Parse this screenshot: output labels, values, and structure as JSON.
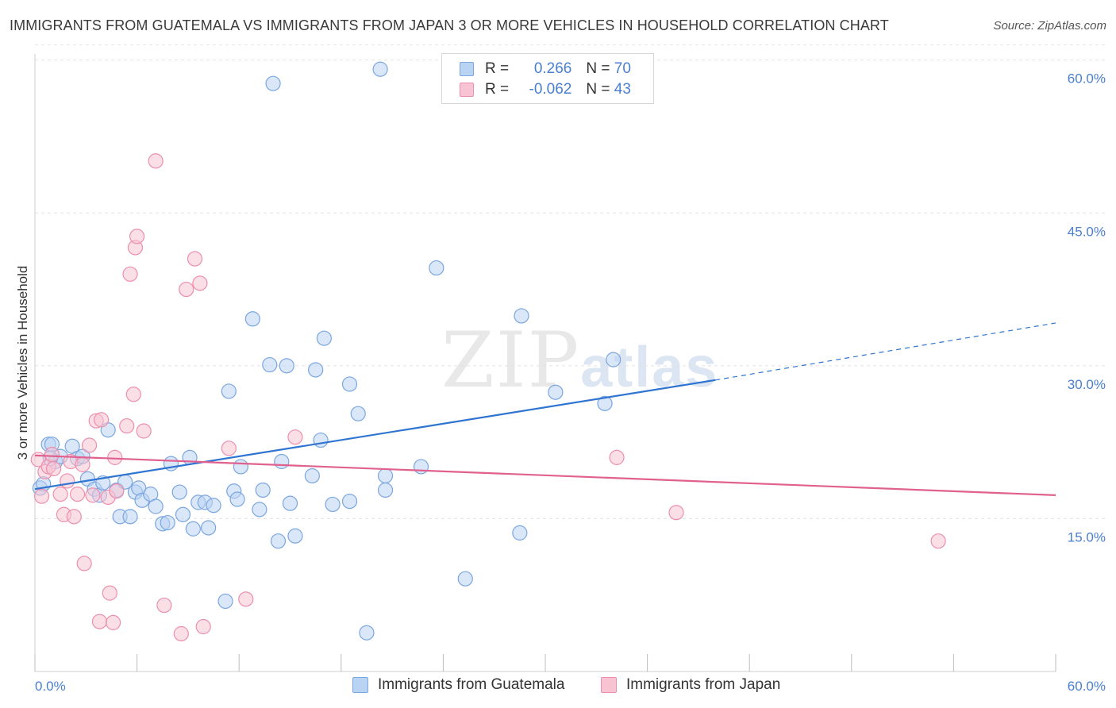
{
  "header": {
    "title": "IMMIGRANTS FROM GUATEMALA VS IMMIGRANTS FROM JAPAN 3 OR MORE VEHICLES IN HOUSEHOLD CORRELATION CHART",
    "source": "Source: ZipAtlas.com"
  },
  "legend": {
    "rows": [
      {
        "r_label": "R = ",
        "r_value": "0.266",
        "n_label": "N = ",
        "n_value": "70"
      },
      {
        "r_label": "R = ",
        "r_value": "-0.062",
        "n_label": "N = ",
        "n_value": "43"
      }
    ]
  },
  "watermark": {
    "zip": "ZIP",
    "atlas": "atlas"
  },
  "colors": {
    "guatemala_fill": "#b9d3f3",
    "guatemala_stroke": "#7ba6e0",
    "guatemala_line": "#2f74d0",
    "japan_fill": "#f8c4d4",
    "japan_stroke": "#ec8fae",
    "japan_line": "#e0608e",
    "tick_text": "#4a7fd0",
    "grid": "#e2e2e2"
  },
  "chart_data": {
    "type": "scatter",
    "title": "IMMIGRANTS FROM GUATEMALA VS IMMIGRANTS FROM JAPAN 3 OR MORE VEHICLES IN HOUSEHOLD CORRELATION CHART",
    "xlabel": "",
    "ylabel": "3 or more Vehicles in Household",
    "xlim": [
      0,
      60
    ],
    "ylim": [
      0,
      62
    ],
    "x_tick_labels": [
      "0.0%",
      "60.0%"
    ],
    "y_ticks": [
      15,
      30,
      45,
      60
    ],
    "y_tick_labels": [
      "15.0%",
      "30.0%",
      "45.0%",
      "60.0%"
    ],
    "grid": true,
    "legend_position": "top-center",
    "series": [
      {
        "name": "Immigrants from Guatemala",
        "r": 0.266,
        "n": 70,
        "trend": {
          "x0": 0,
          "y0": 17.9,
          "x1": 40,
          "y1": 28.6,
          "dash_to_x": 60,
          "dash_to_y": 34.2
        },
        "points": [
          [
            0.3,
            18.0
          ],
          [
            0.5,
            18.4
          ],
          [
            0.8,
            22.3
          ],
          [
            1.0,
            22.3
          ],
          [
            1.2,
            20.6
          ],
          [
            1.5,
            21.1
          ],
          [
            2.2,
            22.1
          ],
          [
            2.5,
            20.9
          ],
          [
            2.8,
            21.1
          ],
          [
            3.1,
            18.9
          ],
          [
            3.5,
            17.9
          ],
          [
            3.8,
            17.3
          ],
          [
            4.0,
            18.5
          ],
          [
            4.3,
            23.7
          ],
          [
            4.8,
            17.8
          ],
          [
            5.0,
            15.2
          ],
          [
            5.3,
            18.6
          ],
          [
            5.6,
            15.2
          ],
          [
            5.9,
            17.6
          ],
          [
            6.1,
            18.0
          ],
          [
            6.3,
            16.8
          ],
          [
            6.8,
            17.4
          ],
          [
            7.1,
            16.2
          ],
          [
            7.5,
            14.5
          ],
          [
            7.8,
            14.6
          ],
          [
            8.0,
            20.4
          ],
          [
            8.5,
            17.6
          ],
          [
            8.7,
            15.4
          ],
          [
            9.1,
            21.0
          ],
          [
            9.3,
            14.0
          ],
          [
            9.6,
            16.6
          ],
          [
            10.0,
            16.6
          ],
          [
            10.2,
            14.1
          ],
          [
            10.5,
            16.3
          ],
          [
            11.2,
            6.9
          ],
          [
            11.4,
            27.5
          ],
          [
            11.7,
            17.7
          ],
          [
            11.9,
            16.9
          ],
          [
            12.1,
            20.1
          ],
          [
            12.8,
            34.6
          ],
          [
            13.2,
            15.9
          ],
          [
            13.4,
            17.8
          ],
          [
            13.8,
            30.1
          ],
          [
            14.0,
            57.7
          ],
          [
            14.3,
            12.8
          ],
          [
            14.5,
            20.6
          ],
          [
            14.8,
            30.0
          ],
          [
            15.0,
            16.5
          ],
          [
            15.3,
            13.3
          ],
          [
            16.3,
            19.2
          ],
          [
            16.5,
            29.6
          ],
          [
            16.8,
            22.7
          ],
          [
            17.0,
            32.7
          ],
          [
            17.5,
            16.4
          ],
          [
            18.5,
            16.7
          ],
          [
            18.5,
            28.2
          ],
          [
            19.0,
            25.3
          ],
          [
            19.5,
            3.8
          ],
          [
            20.3,
            59.1
          ],
          [
            20.6,
            19.2
          ],
          [
            20.6,
            17.8
          ],
          [
            22.7,
            20.1
          ],
          [
            23.6,
            39.6
          ],
          [
            25.3,
            9.1
          ],
          [
            28.5,
            13.6
          ],
          [
            28.6,
            34.9
          ],
          [
            30.6,
            27.4
          ],
          [
            33.5,
            26.3
          ],
          [
            34.0,
            30.6
          ],
          [
            0.9,
            20.9
          ]
        ]
      },
      {
        "name": "Immigrants from Japan",
        "r": -0.062,
        "n": 43,
        "trend": {
          "x0": 0,
          "y0": 21.2,
          "x1": 60,
          "y1": 17.3
        },
        "points": [
          [
            0.2,
            20.8
          ],
          [
            0.4,
            17.2
          ],
          [
            0.6,
            19.6
          ],
          [
            0.8,
            20.1
          ],
          [
            1.1,
            19.9
          ],
          [
            1.5,
            17.4
          ],
          [
            1.7,
            15.4
          ],
          [
            1.9,
            18.7
          ],
          [
            2.1,
            20.6
          ],
          [
            2.3,
            15.2
          ],
          [
            2.5,
            17.4
          ],
          [
            2.8,
            20.3
          ],
          [
            2.9,
            10.6
          ],
          [
            3.2,
            22.2
          ],
          [
            3.4,
            17.3
          ],
          [
            3.6,
            24.6
          ],
          [
            3.8,
            4.9
          ],
          [
            3.9,
            24.7
          ],
          [
            4.3,
            17.1
          ],
          [
            4.4,
            7.7
          ],
          [
            4.6,
            4.8
          ],
          [
            4.8,
            17.7
          ],
          [
            4.7,
            21.0
          ],
          [
            5.4,
            24.1
          ],
          [
            5.6,
            39.0
          ],
          [
            5.8,
            27.2
          ],
          [
            5.9,
            41.6
          ],
          [
            6.0,
            42.7
          ],
          [
            6.4,
            23.6
          ],
          [
            7.1,
            50.1
          ],
          [
            7.6,
            6.5
          ],
          [
            8.6,
            3.7
          ],
          [
            8.9,
            37.5
          ],
          [
            9.4,
            40.5
          ],
          [
            9.7,
            38.1
          ],
          [
            9.9,
            4.4
          ],
          [
            11.4,
            21.9
          ],
          [
            12.4,
            7.1
          ],
          [
            15.3,
            23.0
          ],
          [
            34.2,
            21.0
          ],
          [
            37.7,
            15.6
          ],
          [
            53.1,
            12.8
          ],
          [
            1.0,
            21.3
          ]
        ]
      }
    ]
  },
  "bottom_legend": {
    "items": [
      {
        "label": "Immigrants from Guatemala"
      },
      {
        "label": "Immigrants from Japan"
      }
    ]
  }
}
